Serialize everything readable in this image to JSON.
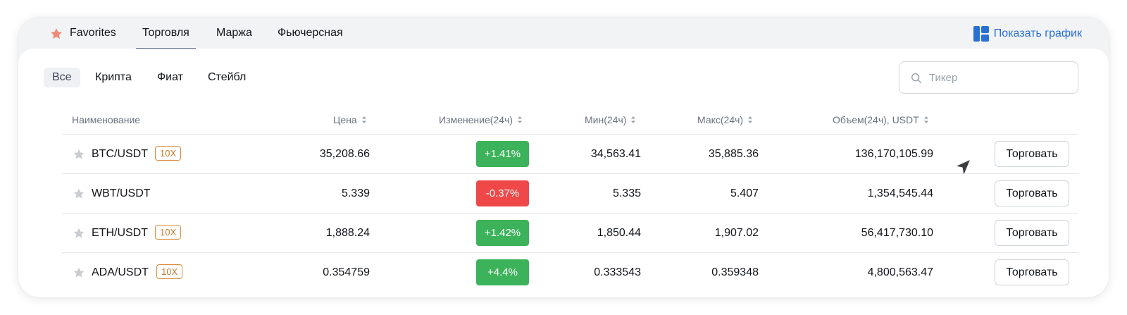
{
  "top_tabs": {
    "favorites": "Favorites",
    "trade": "Торговля",
    "margin": "Маржа",
    "futures": "Фьючерсная"
  },
  "show_chart": "Показать график",
  "filters": {
    "all": "Все",
    "crypto": "Крипта",
    "fiat": "Фиат",
    "stable": "Стейбл"
  },
  "search": {
    "placeholder": "Тикер",
    "value": ""
  },
  "columns": {
    "name": "Наименование",
    "price": "Цена",
    "change": "Изменение(24ч)",
    "min": "Мин(24ч)",
    "max": "Макс(24ч)",
    "volume": "Объем(24ч), USDT"
  },
  "rows": [
    {
      "pair": "BTC/USDT",
      "leverage": "10X",
      "price": "35,208.66",
      "change": "+1.41%",
      "min": "34,563.41",
      "max": "35,885.36",
      "volume": "136,170,105.99",
      "action": "Торговать"
    },
    {
      "pair": "WBT/USDT",
      "leverage": "",
      "price": "5.339",
      "change": "-0.37%",
      "min": "5.335",
      "max": "5.407",
      "volume": "1,354,545.44",
      "action": "Торговать"
    },
    {
      "pair": "ETH/USDT",
      "leverage": "10X",
      "price": "1,888.24",
      "change": "+1.42%",
      "min": "1,850.44",
      "max": "1,907.02",
      "volume": "56,417,730.10",
      "action": "Торговать"
    },
    {
      "pair": "ADA/USDT",
      "leverage": "10X",
      "price": "0.354759",
      "change": "+4.4%",
      "min": "0.333543",
      "max": "0.359348",
      "volume": "4,800,563.47",
      "action": "Торговать"
    }
  ],
  "colors": {
    "accent": "#2a6fd6",
    "up": "#3cb35a",
    "down": "#f04848",
    "leverage": "#c9782a",
    "favorite_star": "#ef8a78"
  }
}
